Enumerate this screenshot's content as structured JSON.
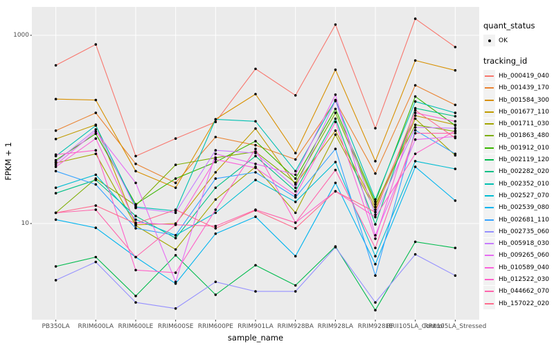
{
  "figure": {
    "background": "#FFFFFF"
  },
  "panel": {
    "background": "#EBEBEB",
    "grid_color": "#FFFFFF"
  },
  "axes": {
    "y_title": "FPKM + 1",
    "x_title": "sample_name",
    "y_ticks": [
      {
        "label": "1000",
        "value": 1000
      },
      {
        "label": "10",
        "value": 10
      }
    ],
    "y_minor_gridlines": [
      100
    ],
    "tick_text_color": "#4D4D4D",
    "tick_mark_color": "#333333"
  },
  "legend": {
    "quant_status_title": "quant_status",
    "quant_status_items": [
      {
        "label": "OK",
        "glyph": "point-icon",
        "color": "#000000"
      }
    ],
    "tracking_id_title": "tracking_id",
    "key_background": "#F2F2F2"
  },
  "chart_data": {
    "type": "line",
    "title": "",
    "xlabel": "sample_name",
    "ylabel": "FPKM + 1",
    "y_scale": "log10",
    "ylim": [
      0.95,
      2000
    ],
    "grid": true,
    "legend_position": "right",
    "point_color": "#000000",
    "categories": [
      "PB350LA",
      "RRIM600LA",
      "RRIM600LE",
      "RRIM600SE",
      "RRIM600PE",
      "RRIM901LA",
      "RRIM928BA",
      "RRIM928LA",
      "RRIM928LE",
      "RRII105LA_Control",
      "RRII105LA_Stressed"
    ],
    "series": [
      {
        "name": "Hb_000419_040",
        "color": "#F8766D",
        "values": [
          480,
          800,
          52,
          80,
          120,
          440,
          230,
          1300,
          103,
          1500,
          750
        ]
      },
      {
        "name": "Hb_001439_170",
        "color": "#EA8331",
        "values": [
          97,
          150,
          43,
          27,
          83,
          68,
          48,
          200,
          34,
          294,
          182
        ]
      },
      {
        "name": "Hb_001584_300",
        "color": "#D89000",
        "values": [
          210,
          205,
          36,
          24,
          128,
          237,
          56,
          430,
          46,
          540,
          424
        ]
      },
      {
        "name": "Hb_001677_110",
        "color": "#C09B00",
        "values": [
          79,
          112,
          9.7,
          10,
          35,
          102,
          26,
          97,
          15,
          140,
          112
        ]
      },
      {
        "name": "Hb_001711_030",
        "color": "#A3A500",
        "values": [
          44,
          55,
          9.5,
          5.3,
          18,
          40,
          13,
          88,
          14,
          130,
          53
        ]
      },
      {
        "name": "Hb_001863_480",
        "color": "#7CAE00",
        "values": [
          13,
          30,
          15.5,
          42,
          50,
          58,
          27,
          150,
          16,
          112,
          95
        ]
      },
      {
        "name": "Hb_001912_010",
        "color": "#39B600",
        "values": [
          47,
          90,
          16,
          30,
          45,
          75,
          30,
          165,
          17,
          224,
          110
        ]
      },
      {
        "name": "Hb_002119_120",
        "color": "#00BB4E",
        "values": [
          3.5,
          4.4,
          1.7,
          4.6,
          1.75,
          3.6,
          2.2,
          5.7,
          1.2,
          6.4,
          5.5
        ]
      },
      {
        "name": "Hb_002282_020",
        "color": "#00C087",
        "values": [
          21,
          29,
          12,
          7,
          24,
          52,
          22,
          130,
          9.8,
          168,
          138
        ]
      },
      {
        "name": "Hb_002352_010",
        "color": "#00C0B2",
        "values": [
          52,
          110,
          15,
          13.6,
          128,
          122,
          36,
          205,
          18,
          198,
          150
        ]
      },
      {
        "name": "Hb_002527_070",
        "color": "#00BDD3",
        "values": [
          24,
          33,
          11,
          7.5,
          13,
          29,
          17,
          45,
          4.5,
          46,
          38
        ]
      },
      {
        "name": "Hb_002539_080",
        "color": "#00B4EF",
        "values": [
          11,
          9,
          4.4,
          2.3,
          7.8,
          11.8,
          4.5,
          27,
          3.7,
          40,
          17.5
        ]
      },
      {
        "name": "Hb_002681_110",
        "color": "#35A2FF",
        "values": [
          36,
          26,
          8.9,
          7.5,
          30,
          35,
          19,
          62,
          2.8,
          98,
          55
        ]
      },
      {
        "name": "Hb_002735_060",
        "color": "#9590FF",
        "values": [
          2.5,
          3.9,
          1.45,
          1.25,
          2.4,
          1.9,
          1.9,
          5.6,
          1.45,
          4.7,
          2.8
        ]
      },
      {
        "name": "Hb_005918_030",
        "color": "#C77CFF",
        "values": [
          45,
          100,
          14.6,
          13,
          60,
          56,
          24,
          202,
          12.4,
          105,
          103
        ]
      },
      {
        "name": "Hb_009265_060",
        "color": "#E76BF3",
        "values": [
          42,
          95,
          27,
          2.4,
          55,
          43,
          33,
          234,
          7.5,
          78,
          84
        ]
      },
      {
        "name": "Hb_010589_040",
        "color": "#FA62DB",
        "values": [
          40,
          80,
          10.2,
          9.7,
          48,
          39,
          20,
          120,
          6.9,
          150,
          122
        ]
      },
      {
        "name": "Hb_012522_030",
        "color": "#FF61C9",
        "values": [
          54,
          60,
          3.2,
          3.0,
          14,
          62,
          10.2,
          22,
          11.7,
          55,
          97
        ]
      },
      {
        "name": "Hb_044662_070",
        "color": "#FF65AC",
        "values": [
          13,
          14,
          4.4,
          9.7,
          9.4,
          14,
          10.2,
          37,
          5.5,
          91,
          91
        ]
      },
      {
        "name": "Hb_157022_020",
        "color": "#FF6B8E",
        "values": [
          13,
          15.5,
          10,
          14,
          8.9,
          13.8,
          8.9,
          22,
          13.2,
          160,
          81
        ]
      }
    ]
  }
}
